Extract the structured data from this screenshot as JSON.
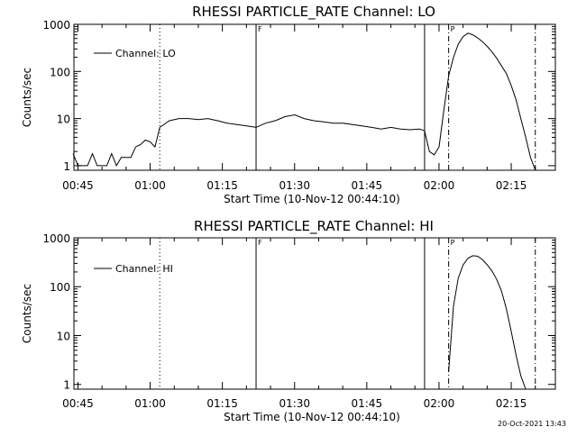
{
  "footer": {
    "timestamp": "20-Oct-2021 13:43"
  },
  "chart_data": [
    {
      "type": "line",
      "title": "RHESSI PARTICLE_RATE Channel: LO",
      "xlabel": "Start Time (10-Nov-12 00:44:10)",
      "ylabel": "Counts/sec",
      "yscale": "log",
      "xlim": [
        "00:44:10",
        "02:24:10"
      ],
      "ylim": [
        0.8,
        1000
      ],
      "xticks": [
        "00:45",
        "01:00",
        "01:15",
        "01:30",
        "01:45",
        "02:00",
        "02:15"
      ],
      "yticks": [
        "1",
        "10",
        "100",
        "1000"
      ],
      "legend": {
        "label": "Channel: LO",
        "placement": "top-left"
      },
      "markers": [
        {
          "time": "01:02",
          "style": "dotted"
        },
        {
          "time": "01:22",
          "style": "solid",
          "label": "F"
        },
        {
          "time": "01:57",
          "style": "solid"
        },
        {
          "time": "02:02",
          "style": "dash-dot",
          "label": "P"
        },
        {
          "time": "02:20",
          "style": "dash-dot"
        }
      ],
      "series": [
        {
          "x": [
            "00:44",
            "00:45",
            "00:46",
            "00:47",
            "00:48",
            "00:49",
            "00:50",
            "00:51",
            "00:52",
            "00:53",
            "00:54",
            "00:55",
            "00:56",
            "00:57",
            "00:58",
            "00:59",
            "01:00",
            "01:01",
            "01:02",
            "01:04",
            "01:06",
            "01:08",
            "01:10",
            "01:12",
            "01:14",
            "01:16",
            "01:18",
            "01:20",
            "01:22",
            "01:24",
            "01:26",
            "01:28",
            "01:30",
            "01:32",
            "01:34",
            "01:36",
            "01:38",
            "01:40",
            "01:42",
            "01:44",
            "01:46",
            "01:48",
            "01:50",
            "01:52",
            "01:54",
            "01:56",
            "01:57",
            "01:58",
            "01:59",
            "02:00",
            "02:01",
            "02:02",
            "02:03",
            "02:04",
            "02:05",
            "02:06",
            "02:07",
            "02:08",
            "02:09",
            "02:10",
            "02:11",
            "02:12",
            "02:13",
            "02:14",
            "02:15",
            "02:16",
            "02:17",
            "02:18",
            "02:19",
            "02:20"
          ],
          "y": [
            1.8,
            1,
            1,
            1,
            1.8,
            1,
            1,
            1,
            1.8,
            1,
            1.5,
            1.5,
            1.5,
            2.5,
            2.8,
            3.5,
            3.2,
            2.5,
            6.5,
            9,
            10,
            10,
            9.5,
            10,
            9,
            8,
            7.5,
            7,
            6.5,
            8,
            9,
            11,
            12,
            10,
            9,
            8.5,
            8,
            8,
            7.5,
            7,
            6.5,
            6,
            6.5,
            6,
            5.8,
            6,
            5.5,
            2,
            1.7,
            2.5,
            15,
            80,
            200,
            380,
            550,
            650,
            600,
            520,
            430,
            340,
            260,
            190,
            130,
            90,
            50,
            25,
            10,
            4,
            1.5,
            0.8
          ]
        }
      ]
    },
    {
      "type": "line",
      "title": "RHESSI PARTICLE_RATE Channel: HI",
      "xlabel": "Start Time (10-Nov-12 00:44:10)",
      "ylabel": "Counts/sec",
      "yscale": "log",
      "xlim": [
        "00:44:10",
        "02:24:10"
      ],
      "ylim": [
        0.8,
        1000
      ],
      "xticks": [
        "00:45",
        "01:00",
        "01:15",
        "01:30",
        "01:45",
        "02:00",
        "02:15"
      ],
      "yticks": [
        "1",
        "10",
        "100",
        "1000"
      ],
      "legend": {
        "label": "Channel: HI",
        "placement": "top-left"
      },
      "markers": [
        {
          "time": "01:02",
          "style": "dotted"
        },
        {
          "time": "01:22",
          "style": "solid",
          "label": "F"
        },
        {
          "time": "01:57",
          "style": "solid"
        },
        {
          "time": "02:02",
          "style": "dash-dot",
          "label": "P"
        },
        {
          "time": "02:20",
          "style": "dash-dot"
        }
      ],
      "series": [
        {
          "x": [
            "02:02",
            "02:03",
            "02:04",
            "02:05",
            "02:06",
            "02:07",
            "02:08",
            "02:09",
            "02:10",
            "02:11",
            "02:12",
            "02:13",
            "02:14",
            "02:15",
            "02:16",
            "02:17",
            "02:18"
          ],
          "y": [
            1.8,
            40,
            150,
            280,
            380,
            430,
            420,
            360,
            280,
            210,
            140,
            80,
            35,
            12,
            4,
            1.5,
            0.8
          ]
        }
      ]
    }
  ]
}
